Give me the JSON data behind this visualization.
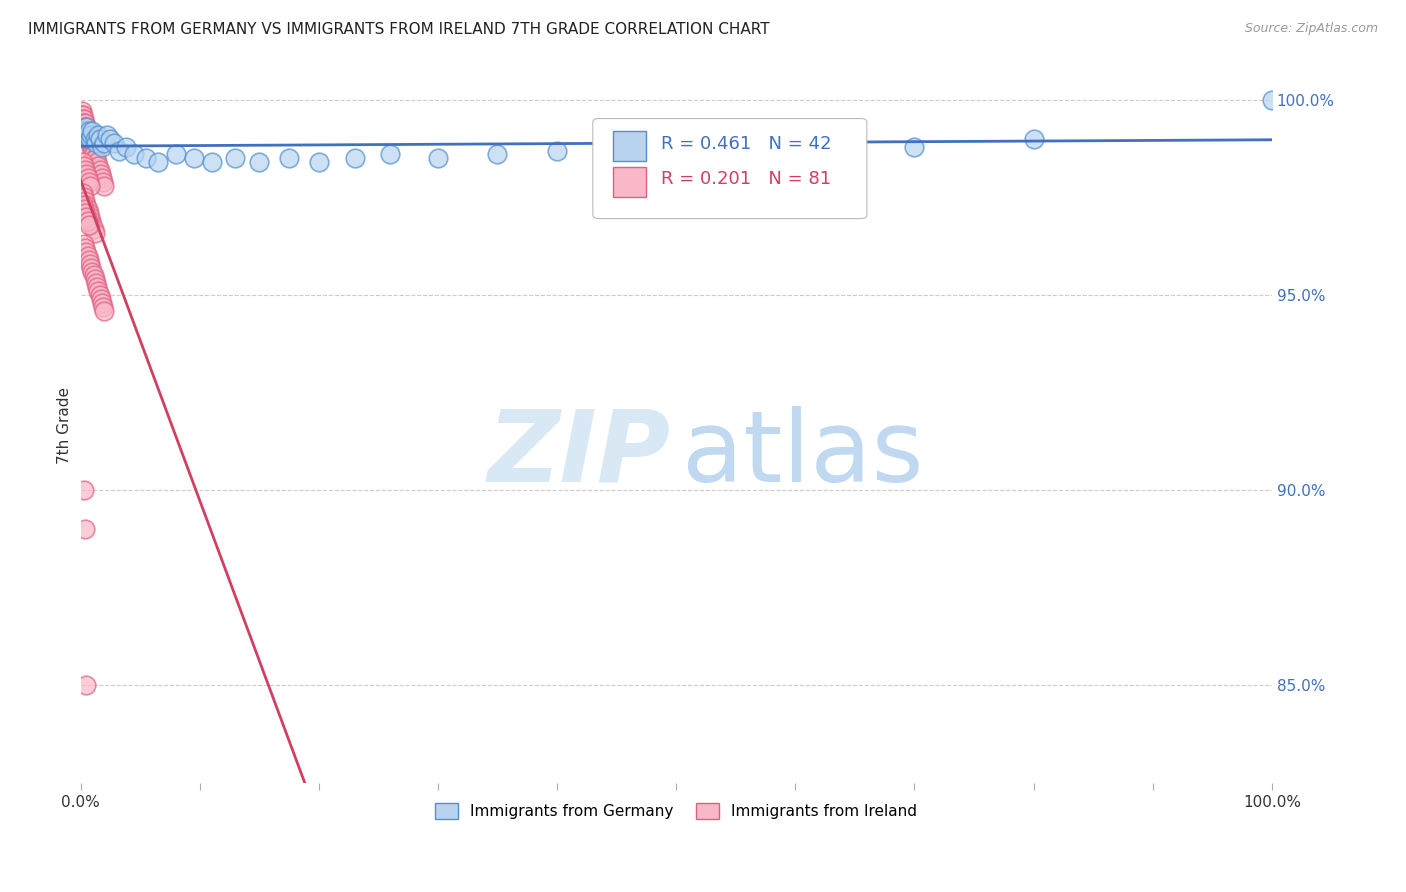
{
  "title": "IMMIGRANTS FROM GERMANY VS IMMIGRANTS FROM IRELAND 7TH GRADE CORRELATION CHART",
  "source": "Source: ZipAtlas.com",
  "ylabel": "7th Grade",
  "right_yticks": [
    "100.0%",
    "95.0%",
    "90.0%",
    "85.0%"
  ],
  "right_ytick_vals": [
    1.0,
    0.95,
    0.9,
    0.85
  ],
  "legend_blue_label": "Immigrants from Germany",
  "legend_pink_label": "Immigrants from Ireland",
  "legend_R_blue": "R = 0.461",
  "legend_N_blue": "N = 42",
  "legend_R_pink": "R = 0.201",
  "legend_N_pink": "N = 81",
  "blue_fill": "#b8d4f0",
  "pink_fill": "#f8b8c8",
  "blue_edge": "#5090d0",
  "pink_edge": "#e06080",
  "line_blue": "#4070c0",
  "line_pink": "#d04060",
  "watermark_ZIP_color": "#d8e8f5",
  "watermark_atlas_color": "#c0d8f0",
  "ylim_low": 0.825,
  "ylim_high": 1.008,
  "xlim_low": 0.0,
  "xlim_high": 1.0,
  "blue_x": [
    0.002,
    0.003,
    0.004,
    0.005,
    0.006,
    0.007,
    0.008,
    0.009,
    0.01,
    0.012,
    0.013,
    0.015,
    0.016,
    0.018,
    0.02,
    0.022,
    0.025,
    0.028,
    0.032,
    0.038,
    0.045,
    0.055,
    0.065,
    0.08,
    0.095,
    0.11,
    0.13,
    0.15,
    0.175,
    0.2,
    0.23,
    0.26,
    0.3,
    0.35,
    0.4,
    0.45,
    0.5,
    0.55,
    0.65,
    0.7,
    0.8,
    1.0
  ],
  "blue_y": [
    0.992,
    0.991,
    0.992,
    0.993,
    0.991,
    0.992,
    0.99,
    0.991,
    0.992,
    0.99,
    0.989,
    0.991,
    0.99,
    0.988,
    0.989,
    0.991,
    0.99,
    0.989,
    0.987,
    0.988,
    0.986,
    0.985,
    0.984,
    0.986,
    0.985,
    0.984,
    0.985,
    0.984,
    0.985,
    0.984,
    0.985,
    0.986,
    0.985,
    0.986,
    0.987,
    0.987,
    0.988,
    0.988,
    0.989,
    0.988,
    0.99,
    1.0
  ],
  "pink_x": [
    0.001,
    0.001,
    0.002,
    0.002,
    0.002,
    0.003,
    0.003,
    0.003,
    0.003,
    0.004,
    0.004,
    0.004,
    0.005,
    0.005,
    0.005,
    0.006,
    0.006,
    0.007,
    0.007,
    0.008,
    0.008,
    0.009,
    0.009,
    0.01,
    0.01,
    0.011,
    0.011,
    0.012,
    0.013,
    0.014,
    0.015,
    0.016,
    0.017,
    0.018,
    0.019,
    0.02,
    0.002,
    0.003,
    0.004,
    0.005,
    0.006,
    0.007,
    0.008,
    0.002,
    0.003,
    0.004,
    0.005,
    0.006,
    0.007,
    0.008,
    0.009,
    0.01,
    0.011,
    0.012,
    0.003,
    0.004,
    0.005,
    0.006,
    0.007,
    0.008,
    0.009,
    0.01,
    0.011,
    0.012,
    0.013,
    0.014,
    0.015,
    0.016,
    0.017,
    0.018,
    0.019,
    0.02,
    0.002,
    0.003,
    0.004,
    0.005,
    0.006,
    0.007,
    0.003,
    0.004,
    0.005
  ],
  "pink_y": [
    0.997,
    0.996,
    0.996,
    0.995,
    0.994,
    0.995,
    0.994,
    0.993,
    0.992,
    0.994,
    0.993,
    0.992,
    0.993,
    0.992,
    0.991,
    0.992,
    0.991,
    0.991,
    0.99,
    0.99,
    0.989,
    0.989,
    0.988,
    0.988,
    0.987,
    0.987,
    0.986,
    0.985,
    0.985,
    0.984,
    0.983,
    0.982,
    0.981,
    0.98,
    0.979,
    0.978,
    0.984,
    0.983,
    0.982,
    0.981,
    0.98,
    0.979,
    0.978,
    0.976,
    0.975,
    0.974,
    0.973,
    0.972,
    0.971,
    0.97,
    0.969,
    0.968,
    0.967,
    0.966,
    0.963,
    0.962,
    0.961,
    0.96,
    0.959,
    0.958,
    0.957,
    0.956,
    0.955,
    0.954,
    0.953,
    0.952,
    0.951,
    0.95,
    0.949,
    0.948,
    0.947,
    0.946,
    0.973,
    0.972,
    0.971,
    0.97,
    0.969,
    0.968,
    0.9,
    0.89,
    0.85
  ]
}
